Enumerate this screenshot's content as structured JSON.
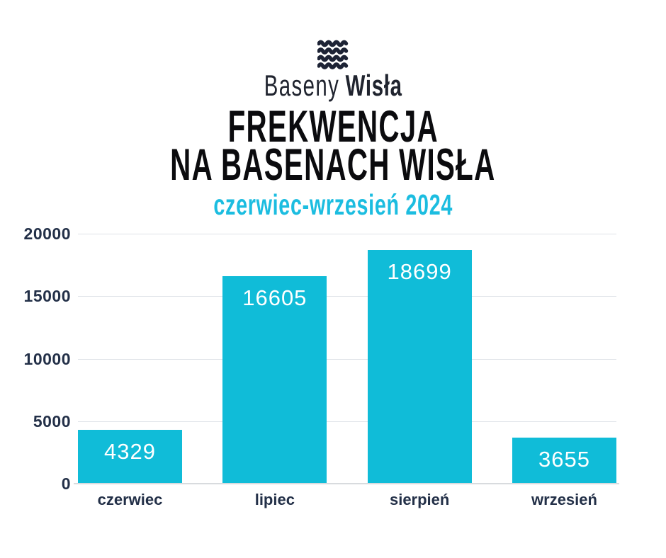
{
  "brand": {
    "logo_icon": "waves-icon",
    "name_light": "Baseny",
    "name_bold": "Wisła"
  },
  "title": {
    "line1": "FREKWENCJA",
    "line2": "NA BASENACH WISŁA"
  },
  "subtitle": "czerwiec-wrzesień 2024",
  "colors": {
    "bar_fill": "#10bcd8",
    "subtitle_cyan": "#1cbde0",
    "axis_label_navy": "#233048",
    "title_black": "#0b0b0e",
    "logo_navy": "#1d2335",
    "gridline": "#dfe3e8",
    "baseline": "#d8dbde",
    "bar_value_text": "#ffffff",
    "background": "#ffffff"
  },
  "chart_data": {
    "type": "bar",
    "title": "FREKWENCJA NA BASENACH WISŁA",
    "subtitle": "czerwiec-wrzesień 2024",
    "categories": [
      "czerwiec",
      "lipiec",
      "sierpień",
      "wrzesień"
    ],
    "values": [
      4329,
      16605,
      18699,
      3655
    ],
    "xlabel": "",
    "ylabel": "",
    "ylim": [
      0,
      20000
    ],
    "yticks": [
      0,
      5000,
      10000,
      15000,
      20000
    ],
    "grid": true,
    "legend": false,
    "bar_color": "#10bcd8",
    "value_label_position": "inside-top",
    "value_label_color": "#ffffff"
  }
}
